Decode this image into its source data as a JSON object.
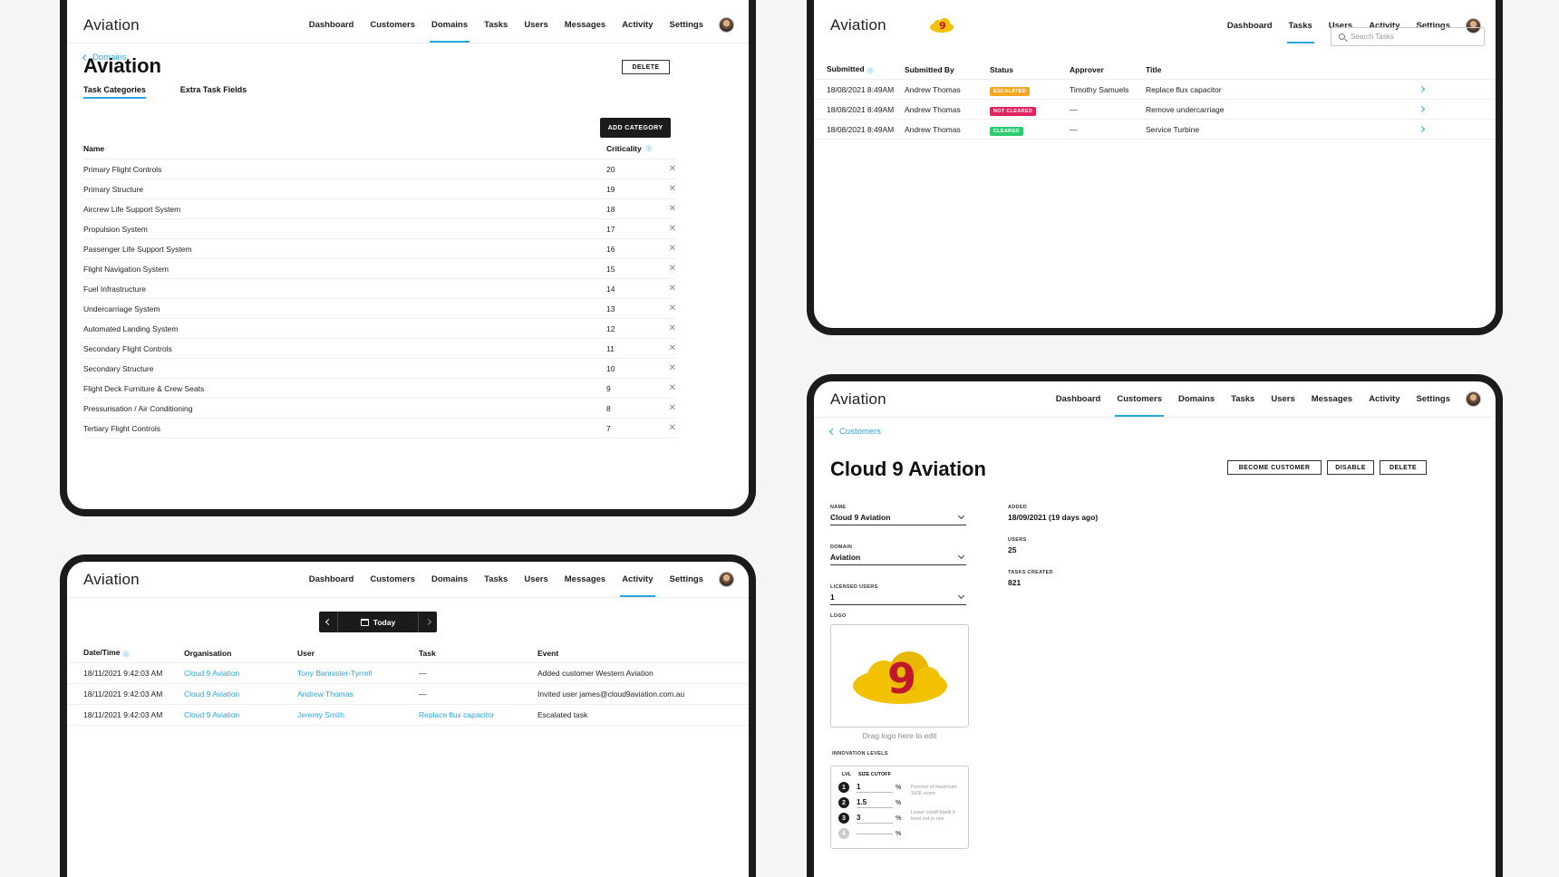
{
  "brand": "Aviation",
  "nav_full": [
    "Dashboard",
    "Customers",
    "Domains",
    "Tasks",
    "Users",
    "Messages",
    "Activity",
    "Settings"
  ],
  "nav_short": [
    "Dashboard",
    "Tasks",
    "Users",
    "Activity",
    "Settings"
  ],
  "domain_screen": {
    "breadcrumb": "Domains",
    "title": "Aviation",
    "delete_label": "DELETE",
    "tabs": [
      "Task Categories",
      "Extra Task Fields"
    ],
    "add_category_label": "ADD CATEGORY",
    "columns": [
      "Name",
      "Criticality"
    ],
    "rows": [
      {
        "name": "Primary Flight Controls",
        "criticality": "20"
      },
      {
        "name": "Primary Structure",
        "criticality": "19"
      },
      {
        "name": "Aircrew Life Support System",
        "criticality": "18"
      },
      {
        "name": "Propulsion System",
        "criticality": "17"
      },
      {
        "name": "Passenger Life Support System",
        "criticality": "16"
      },
      {
        "name": "Flight Navigation System",
        "criticality": "15"
      },
      {
        "name": "Fuel Infrastructure",
        "criticality": "14"
      },
      {
        "name": "Undercarriage System",
        "criticality": "13"
      },
      {
        "name": "Automated Landing System",
        "criticality": "12"
      },
      {
        "name": "Secondary Flight Controls",
        "criticality": "11"
      },
      {
        "name": "Secondary Structure",
        "criticality": "10"
      },
      {
        "name": "Flight Deck Furniture & Crew Seats",
        "criticality": "9"
      },
      {
        "name": "Pressurisation / Air Conditioning",
        "criticality": "8"
      },
      {
        "name": "Tertiary Flight Controls",
        "criticality": "7"
      }
    ]
  },
  "tasks_screen": {
    "search_placeholder": "Search Tasks",
    "columns": [
      "Submitted",
      "Submitted By",
      "Status",
      "Approver",
      "Title"
    ],
    "rows": [
      {
        "submitted": "18/08/2021  8:49AM",
        "by": "Andrew Thomas",
        "status": "ESCALATED",
        "status_color": "#f5a623",
        "approver": "Timothy Samuels",
        "title": "Replace flux capacitor"
      },
      {
        "submitted": "18/08/2021  8:49AM",
        "by": "Andrew Thomas",
        "status": "NOT CLEARED",
        "status_color": "#e0245e",
        "approver": "—",
        "title": "Remove undercarriage"
      },
      {
        "submitted": "18/08/2021  8:49AM",
        "by": "Andrew Thomas",
        "status": "CLEARED",
        "status_color": "#2ecc71",
        "approver": "—",
        "title": "Service Turbine"
      }
    ]
  },
  "activity_screen": {
    "date_label": "Today",
    "columns": [
      "Date/Time",
      "Organisation",
      "User",
      "Task",
      "Event"
    ],
    "rows": [
      {
        "datetime": "18/11/2021 9:42:03 AM",
        "org": "Cloud 9 Aviation",
        "user": "Tony Bannister-Tyrrell",
        "task": "—",
        "event": "Added customer Western Aviation"
      },
      {
        "datetime": "18/11/2021 9:42:03 AM",
        "org": "Cloud 9 Aviation",
        "user": "Andrew Thomas",
        "task": "—",
        "event": "Invited user james@cloud9aviation.com.au"
      },
      {
        "datetime": "18/11/2021 9:42:03 AM",
        "org": "Cloud 9 Aviation",
        "user": "Jeremy Smith",
        "task": "Replace flux capacitor",
        "event": "Escalated task"
      }
    ]
  },
  "customer_screen": {
    "breadcrumb": "Customers",
    "title": "Cloud 9 Aviation",
    "buttons": [
      "BECOME CUSTOMER",
      "DISABLE",
      "DELETE"
    ],
    "name_label": "NAME",
    "name_value": "Cloud 9 Aviation",
    "domain_label": "DOMAIN",
    "domain_value": "Aviation",
    "licensed_label": "LICENSED USERS",
    "licensed_value": "1",
    "logo_label": "LOGO",
    "drag_hint": "Drag logo here to edit",
    "added_label": "ADDED",
    "added_value": "18/09/2021 (19 days ago)",
    "users_label": "USERS",
    "users_value": "25",
    "tasks_label": "TASKS CREATED",
    "tasks_value": "821",
    "innovation_label": "INNOVATION LEVELS",
    "lvl_label": "LVL",
    "size_cutoff_label": "SIZE CUTOFF",
    "levels": [
      {
        "n": "1",
        "value": "1"
      },
      {
        "n": "2",
        "value": "1.5"
      },
      {
        "n": "3",
        "value": "3"
      },
      {
        "n": "4",
        "value": ""
      }
    ],
    "pct": "%",
    "note1": "Percent of maximum SIZE score",
    "note2": "Leave cutoff blank if level not in use"
  },
  "colors": {
    "accent": "#2aa7df",
    "logo_yellow": "#f2c200",
    "logo_red": "#c0182b"
  }
}
